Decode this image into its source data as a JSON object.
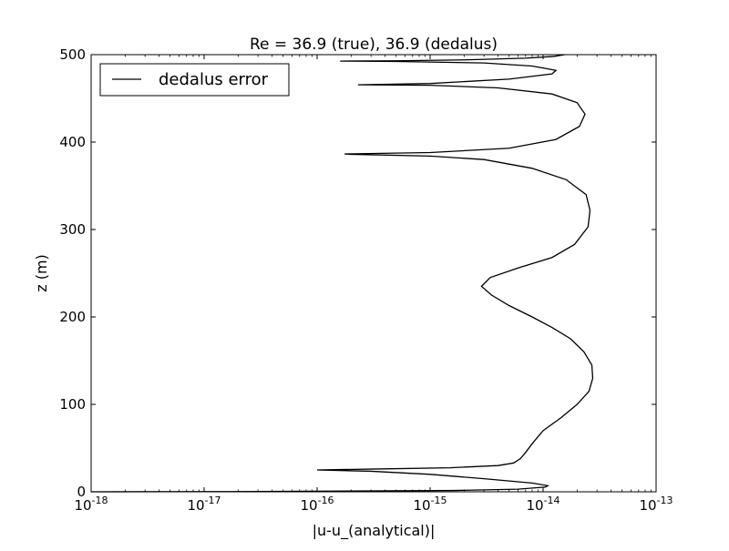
{
  "chart_data": {
    "type": "line",
    "title": "Re = 36.9 (true), 36.9 (dedalus)",
    "xlabel": "|u-u_(analytical)|",
    "ylabel": "z (m)",
    "xscale": "log",
    "xlim": [
      1e-18,
      1e-13
    ],
    "ylim": [
      0,
      500
    ],
    "grid": false,
    "legend_position": "upper-left",
    "x_ticks": [
      {
        "value": 1e-18,
        "base": "10",
        "exp": "-18"
      },
      {
        "value": 1e-17,
        "base": "10",
        "exp": "-17"
      },
      {
        "value": 1e-16,
        "base": "10",
        "exp": "-16"
      },
      {
        "value": 1e-15,
        "base": "10",
        "exp": "-15"
      },
      {
        "value": 1e-14,
        "base": "10",
        "exp": "-14"
      },
      {
        "value": 1e-13,
        "base": "10",
        "exp": "-13"
      }
    ],
    "y_ticks": [
      {
        "value": 0,
        "label": "0"
      },
      {
        "value": 100,
        "label": "100"
      },
      {
        "value": 200,
        "label": "200"
      },
      {
        "value": 300,
        "label": "300"
      },
      {
        "value": 400,
        "label": "400"
      },
      {
        "value": 500,
        "label": "500"
      }
    ],
    "series": [
      {
        "name": "dedalus error",
        "color": "#000000",
        "points": [
          [
            1e-18,
            0.0
          ],
          [
            3e-17,
            0.3
          ],
          [
            1.6e-15,
            1.5
          ],
          [
            6e-15,
            3.0
          ],
          [
            1.05e-14,
            5.5
          ],
          [
            1.1e-14,
            7.0
          ],
          [
            8e-15,
            10.0
          ],
          [
            3e-15,
            15.0
          ],
          [
            1e-15,
            20.0
          ],
          [
            3e-16,
            23.5
          ],
          [
            1e-16,
            25.0
          ],
          [
            3e-16,
            26.0
          ],
          [
            1.5e-15,
            27.5
          ],
          [
            4e-15,
            30.0
          ],
          [
            5.5e-15,
            33.0
          ],
          [
            6.3e-15,
            38.0
          ],
          [
            7e-15,
            45.0
          ],
          [
            8e-15,
            55.0
          ],
          [
            1e-14,
            70.0
          ],
          [
            1.45e-14,
            85.0
          ],
          [
            2e-14,
            100.0
          ],
          [
            2.55e-14,
            115.0
          ],
          [
            2.75e-14,
            130.0
          ],
          [
            2.7e-14,
            145.0
          ],
          [
            2.3e-14,
            160.0
          ],
          [
            1.75e-14,
            175.0
          ],
          [
            1.2e-14,
            188.0
          ],
          [
            8e-15,
            200.0
          ],
          [
            5e-15,
            213.0
          ],
          [
            3.5e-15,
            225.0
          ],
          [
            2.85e-15,
            235.0
          ],
          [
            3.4e-15,
            245.0
          ],
          [
            6e-15,
            256.0
          ],
          [
            1.2e-14,
            268.0
          ],
          [
            1.9e-14,
            283.0
          ],
          [
            2.5e-14,
            303.0
          ],
          [
            2.6e-14,
            322.0
          ],
          [
            2.4e-14,
            340.0
          ],
          [
            1.6e-14,
            357.0
          ],
          [
            8e-15,
            370.0
          ],
          [
            3e-15,
            380.0
          ],
          [
            1e-15,
            384.0
          ],
          [
            2e-16,
            386.0
          ],
          [
            1.75e-16,
            386.4
          ],
          [
            1e-15,
            388.0
          ],
          [
            5e-15,
            393.0
          ],
          [
            1.3e-14,
            403.0
          ],
          [
            2.1e-14,
            418.0
          ],
          [
            2.35e-14,
            432.0
          ],
          [
            2e-14,
            445.0
          ],
          [
            1.2e-14,
            455.0
          ],
          [
            4e-15,
            462.0
          ],
          [
            1e-15,
            465.0
          ],
          [
            2.3e-16,
            465.5
          ],
          [
            1e-15,
            467.0
          ],
          [
            5e-15,
            472.0
          ],
          [
            1.2e-14,
            478.0
          ],
          [
            1.3e-14,
            482.0
          ],
          [
            8e-15,
            487.0
          ],
          [
            3e-15,
            490.5
          ],
          [
            5e-16,
            492.2
          ],
          [
            1.6e-16,
            492.6
          ],
          [
            5e-16,
            493.0
          ],
          [
            2e-15,
            494.0
          ],
          [
            7e-15,
            496.0
          ],
          [
            1.25e-14,
            498.0
          ],
          [
            1.55e-14,
            500.0
          ]
        ]
      }
    ]
  }
}
